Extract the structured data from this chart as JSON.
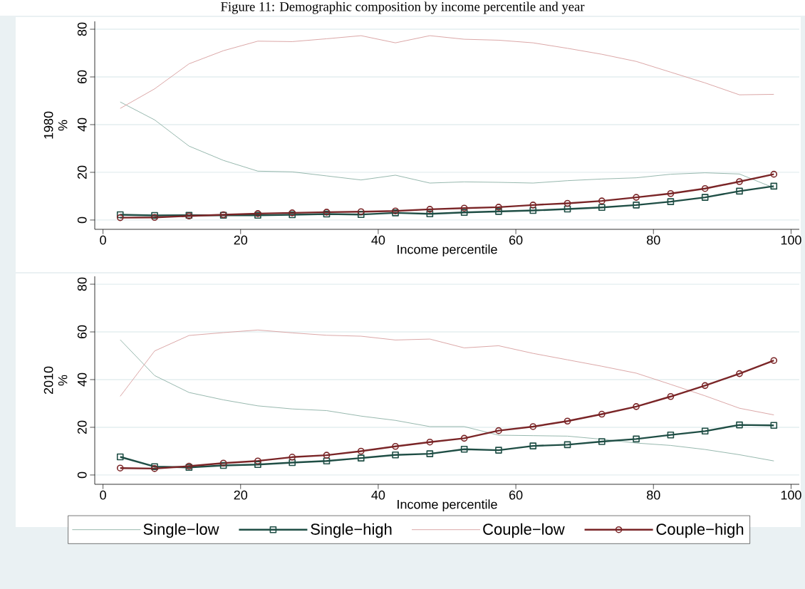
{
  "chart_data": [
    {
      "type": "line",
      "title": "Figure 11: Demographic composition by income percentile and year",
      "xlabel": "Income percentile",
      "ylabel": "1980 %",
      "x": [
        2.5,
        7.5,
        12.5,
        17.5,
        22.5,
        27.5,
        32.5,
        37.5,
        42.5,
        47.5,
        52.5,
        57.5,
        62.5,
        67.5,
        72.5,
        77.5,
        82.5,
        87.5,
        92.5,
        97.5
      ],
      "xlim": [
        -1.2,
        101.2
      ],
      "xticks": [
        0,
        20,
        40,
        60,
        80,
        100
      ],
      "ylim": [
        -3.9,
        83.3
      ],
      "yticks": [
        0,
        20,
        40,
        60,
        80
      ],
      "grid": "y",
      "line_style": "solid",
      "series": [
        {
          "color": "#8fb3a8",
          "marker": "none",
          "values": [
            49.5,
            42,
            31,
            25,
            20.5,
            20.2,
            18.5,
            16.8,
            18.8,
            15.5,
            16,
            15.8,
            15.5,
            16.5,
            17.2,
            17.7,
            19.2,
            19.8,
            19.3,
            13.5
          ]
        },
        {
          "color": "#1f4e45",
          "marker": "square",
          "values": [
            2.2,
            1.9,
            2.0,
            2.0,
            2.0,
            2.2,
            2.5,
            2.3,
            3.0,
            2.6,
            3.2,
            3.6,
            4.0,
            4.6,
            5.3,
            6.3,
            7.7,
            9.5,
            12.1,
            14.2
          ]
        },
        {
          "color": "#d8a0a0",
          "marker": "none",
          "values": [
            46.8,
            55,
            65.5,
            71,
            75,
            74.8,
            76,
            77.3,
            74.3,
            77.3,
            75.8,
            75.4,
            74.3,
            72,
            69.5,
            66.5,
            62,
            57.5,
            52.5,
            52.7
          ]
        },
        {
          "color": "#7a2527",
          "marker": "circle",
          "values": [
            1.0,
            1.1,
            1.7,
            2.2,
            2.7,
            3.0,
            3.3,
            3.5,
            3.8,
            4.5,
            5.0,
            5.4,
            6.3,
            7.0,
            8.0,
            9.5,
            11.1,
            13.2,
            16.1,
            19.2
          ]
        }
      ]
    },
    {
      "type": "line",
      "xlabel": "Income percentile",
      "ylabel": "2010 %",
      "x": [
        2.5,
        7.5,
        12.5,
        17.5,
        22.5,
        27.5,
        32.5,
        37.5,
        42.5,
        47.5,
        52.5,
        57.5,
        62.5,
        67.5,
        72.5,
        77.5,
        82.5,
        87.5,
        92.5,
        97.5
      ],
      "xlim": [
        -1.2,
        101.2
      ],
      "xticks": [
        0,
        20,
        40,
        60,
        80,
        100
      ],
      "ylim": [
        -3.9,
        83.3
      ],
      "yticks": [
        0,
        20,
        40,
        60,
        80
      ],
      "grid": "y",
      "line_style": "solid",
      "legend": "bottom",
      "series": [
        {
          "name": "Single−low",
          "color": "#8fb3a8",
          "marker": "none",
          "values": [
            56.7,
            41.7,
            34.6,
            31.5,
            29,
            27.7,
            27,
            24.7,
            22.9,
            20.3,
            20.3,
            16.7,
            16.5,
            16.3,
            15,
            13.4,
            12.4,
            10.7,
            8.5,
            5.9
          ]
        },
        {
          "name": "Single−high",
          "color": "#1f4e45",
          "marker": "square",
          "values": [
            7.6,
            3.5,
            3.2,
            4,
            4.4,
            5.2,
            5.9,
            7.1,
            8.4,
            8.9,
            10.8,
            10.4,
            12.2,
            12.7,
            14,
            15.1,
            16.8,
            18.4,
            21,
            20.8
          ]
        },
        {
          "name": "Couple−low",
          "color": "#d8a0a0",
          "marker": "none",
          "values": [
            33,
            52,
            58.5,
            59.7,
            60.8,
            59.6,
            58.6,
            58.2,
            56.6,
            57,
            53.3,
            54.2,
            51,
            48.3,
            45.6,
            42.7,
            38,
            33.2,
            28,
            25.2
          ]
        },
        {
          "name": "Couple−high",
          "color": "#7a2527",
          "marker": "circle",
          "values": [
            2.9,
            2.7,
            3.7,
            5,
            5.9,
            7.5,
            8.3,
            10,
            12,
            13.8,
            15.4,
            18.6,
            20.3,
            22.6,
            25.5,
            28.7,
            32.9,
            37.5,
            42.5,
            48
          ]
        }
      ]
    }
  ]
}
